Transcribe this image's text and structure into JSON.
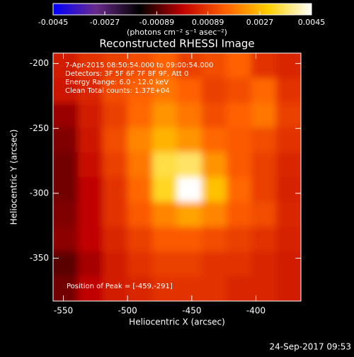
{
  "chart_data": {
    "type": "image",
    "title": "Reconstructed RHESSI Image",
    "xlabel": "Heliocentric X (arcsec)",
    "ylabel": "Heliocentric Y (arcsec)",
    "colorbar_label": "(photons cm⁻² s⁻¹ asec⁻²)",
    "clim": [
      -0.0045,
      0.0045
    ],
    "cticks": [
      -0.0045,
      -0.0027,
      -0.00089,
      0.00089,
      0.0027,
      0.0045
    ],
    "colormap": [
      "#0000ff",
      "#6a2a8a",
      "#000000",
      "#c00000",
      "#ff6000",
      "#ffd000",
      "#ffffff"
    ],
    "annotations": [
      "7-Apr-2015 08:50:54.000 to 09:00:54.000",
      "Detectors: 3F 5F 6F 7F 8F 9F, Att 0",
      "Energy Range: 6.0 - 12.0 keV",
      "Clean    Total counts: 1.37E+04"
    ],
    "peak_label": "Position of Peak = [-459,-291]",
    "footer": "24-Sep-2017 09:53",
    "xlim": [
      -558,
      -365
    ],
    "ylim": [
      -383,
      -192
    ],
    "xticks": [
      -550,
      -500,
      -450,
      -400
    ],
    "yticks": [
      -200,
      -250,
      -300,
      -350
    ],
    "x": [
      -548.4,
      -529.1,
      -509.8,
      -490.5,
      -471.2,
      -451.9,
      -432.6,
      -413.3,
      -394,
      -374.7
    ],
    "y": [
      -201.6,
      -220.7,
      -239.8,
      -258.9,
      -278,
      -297.1,
      -316.2,
      -335.3,
      -354.4,
      -373.5
    ],
    "z": [
      [
        0.0004,
        0.0008,
        0.001,
        0.0012,
        0.0015,
        0.001,
        0.0012,
        0.0015,
        0.0008,
        0.0006
      ],
      [
        0.0003,
        0.0006,
        0.0012,
        0.0015,
        0.0018,
        0.0015,
        0.001,
        0.0012,
        0.0016,
        0.0008
      ],
      [
        -0.0003,
        0.0004,
        0.001,
        0.0016,
        0.0022,
        0.0018,
        0.0012,
        0.0015,
        0.0018,
        0.001
      ],
      [
        -0.0005,
        0.0003,
        0.0012,
        0.002,
        0.0026,
        0.0022,
        0.0016,
        0.0014,
        0.0012,
        0.0008
      ],
      [
        -0.0006,
        0.0002,
        0.001,
        0.0018,
        0.0034,
        0.0036,
        0.0022,
        0.0014,
        0.001,
        0.0006
      ],
      [
        -0.0006,
        0,
        0.0008,
        0.0016,
        0.0032,
        0.0045,
        0.0028,
        0.0016,
        0.001,
        0.0005
      ],
      [
        -0.0005,
        0,
        0.0008,
        0.0014,
        0.002,
        0.0024,
        0.002,
        0.0014,
        0.0012,
        0.0006
      ],
      [
        -0.0004,
        0,
        0.0006,
        0.001,
        0.0014,
        0.0014,
        0.0012,
        0.001,
        0.0008,
        0.0005
      ],
      [
        -0.0008,
        -0.0002,
        0.0004,
        0.0008,
        0.001,
        0.001,
        0.0008,
        0.0008,
        0.0006,
        0.0004
      ],
      [
        -0.0006,
        0,
        0.0004,
        0.0006,
        0.0008,
        0.0008,
        0.0008,
        0.0006,
        0.0006,
        0.0004
      ]
    ]
  }
}
